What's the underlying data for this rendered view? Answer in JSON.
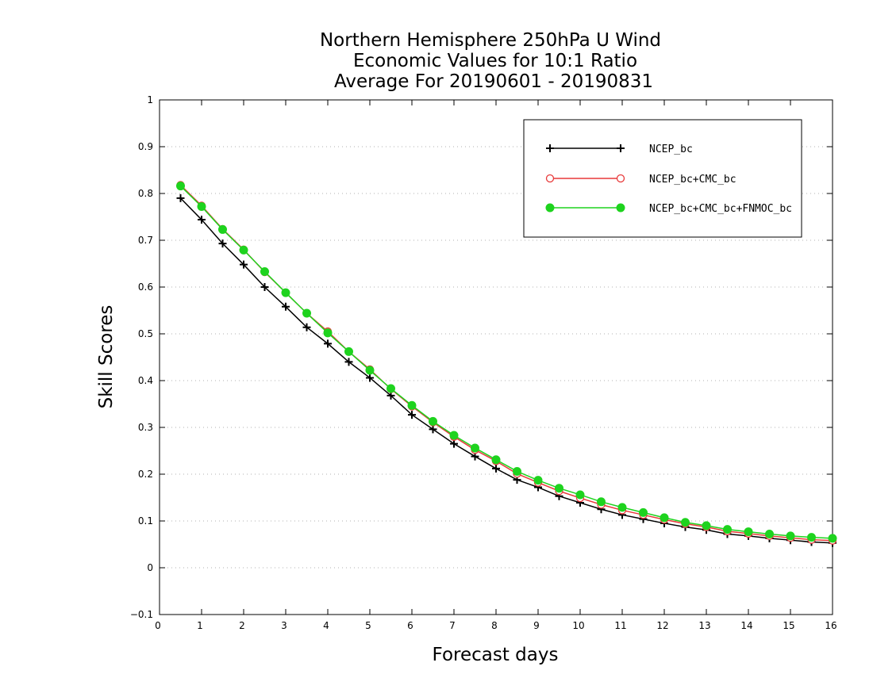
{
  "chart_data": {
    "type": "line",
    "title": [
      "Northern Hemisphere 250hPa U Wind",
      "Economic Values for 10:1 Ratio",
      "Average For 20190601 - 20190831"
    ],
    "xlabel": "Forecast days",
    "ylabel": "Skill Scores",
    "xlim": [
      0,
      16
    ],
    "ylim": [
      -0.1,
      1
    ],
    "xticks": [
      "0",
      "1",
      "2",
      "3",
      "4",
      "5",
      "6",
      "7",
      "8",
      "9",
      "10",
      "11",
      "12",
      "13",
      "14",
      "15",
      "16"
    ],
    "yticks": [
      "−0.1",
      "0",
      "0.1",
      "0.2",
      "0.3",
      "0.4",
      "0.5",
      "0.6",
      "0.7",
      "0.8",
      "0.9",
      "1"
    ],
    "grid": true,
    "legend_position": "top-right",
    "x": [
      0.5,
      1,
      1.5,
      2,
      2.5,
      3,
      3.5,
      4,
      4.5,
      5,
      5.5,
      6,
      6.5,
      7,
      7.5,
      8,
      8.5,
      9,
      9.5,
      10,
      10.5,
      11,
      11.5,
      12,
      12.5,
      13,
      13.5,
      14,
      14.5,
      15,
      15.5,
      16
    ],
    "series": [
      {
        "name": "NCEP_bc",
        "color": "#000000",
        "marker": "plus",
        "values": [
          0.79,
          0.744,
          0.693,
          0.648,
          0.6,
          0.558,
          0.514,
          0.479,
          0.44,
          0.406,
          0.368,
          0.327,
          0.296,
          0.265,
          0.238,
          0.212,
          0.188,
          0.172,
          0.153,
          0.139,
          0.125,
          0.113,
          0.104,
          0.095,
          0.087,
          0.081,
          0.072,
          0.068,
          0.063,
          0.059,
          0.055,
          0.053
        ]
      },
      {
        "name": "NCEP_bc+CMC_bc",
        "color": "#e8393a",
        "marker": "open-circle",
        "values": [
          0.818,
          0.774,
          0.724,
          0.68,
          0.632,
          0.588,
          0.544,
          0.505,
          0.462,
          0.424,
          0.382,
          0.345,
          0.311,
          0.28,
          0.252,
          0.228,
          0.201,
          0.182,
          0.164,
          0.149,
          0.135,
          0.123,
          0.113,
          0.103,
          0.094,
          0.087,
          0.078,
          0.073,
          0.068,
          0.064,
          0.06,
          0.058
        ]
      },
      {
        "name": "NCEP_bc+CMC_bc+FNMOC_bc",
        "color": "#1ed31e",
        "marker": "filled-circle",
        "values": [
          0.816,
          0.772,
          0.723,
          0.679,
          0.633,
          0.588,
          0.544,
          0.502,
          0.462,
          0.422,
          0.383,
          0.347,
          0.313,
          0.283,
          0.256,
          0.231,
          0.206,
          0.187,
          0.17,
          0.156,
          0.141,
          0.129,
          0.118,
          0.107,
          0.097,
          0.09,
          0.082,
          0.077,
          0.072,
          0.068,
          0.065,
          0.063
        ]
      }
    ]
  }
}
